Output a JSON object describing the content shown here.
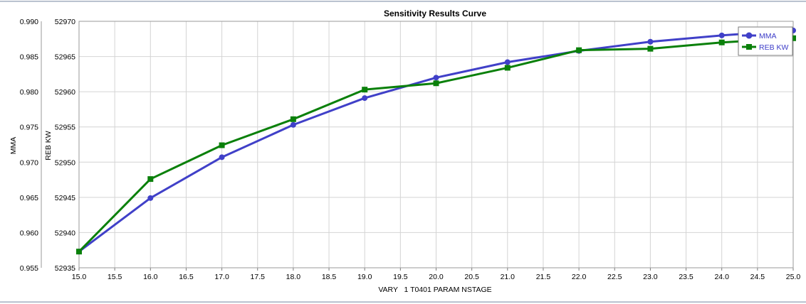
{
  "chart_data": {
    "type": "line",
    "title": "Sensitivity Results Curve",
    "xlabel": "VARY   1 T0401 PARAM NSTAGE",
    "ylabel_left": "MMA",
    "ylabel_right": "REB KW",
    "x": [
      15.0,
      16.0,
      17.0,
      18.0,
      19.0,
      20.0,
      21.0,
      22.0,
      23.0,
      24.0,
      25.0
    ],
    "xlim": [
      15.0,
      25.0
    ],
    "x_ticks": [
      "15.0",
      "15.5",
      "16.0",
      "16.5",
      "17.0",
      "17.5",
      "18.0",
      "18.5",
      "19.0",
      "19.5",
      "20.0",
      "20.5",
      "21.0",
      "21.5",
      "22.0",
      "22.5",
      "23.0",
      "23.5",
      "24.0",
      "24.5",
      "25.0"
    ],
    "y_left_lim": [
      0.955,
      0.99
    ],
    "y_left_ticks": [
      "0.955",
      "0.960",
      "0.965",
      "0.970",
      "0.975",
      "0.980",
      "0.985",
      "0.990"
    ],
    "y_right_lim": [
      52935,
      52970
    ],
    "y_right_ticks": [
      "52935",
      "52940",
      "52945",
      "52950",
      "52955",
      "52960",
      "52965",
      "52970"
    ],
    "grid": true,
    "legend_position": "top-right",
    "series": [
      {
        "name": "MMA",
        "axis": "left",
        "color": "#4040c8",
        "marker": "circle",
        "values": [
          0.9573,
          0.9649,
          0.9707,
          0.9753,
          0.9791,
          0.982,
          0.9842,
          0.9858,
          0.9871,
          0.988,
          0.9887
        ]
      },
      {
        "name": "REB KW",
        "axis": "right",
        "color": "#0a800a",
        "marker": "square",
        "values": [
          52937.3,
          52947.6,
          52952.4,
          52956.1,
          52960.3,
          52961.2,
          52963.4,
          52965.9,
          52966.1,
          52967.0,
          52967.6
        ]
      }
    ]
  }
}
